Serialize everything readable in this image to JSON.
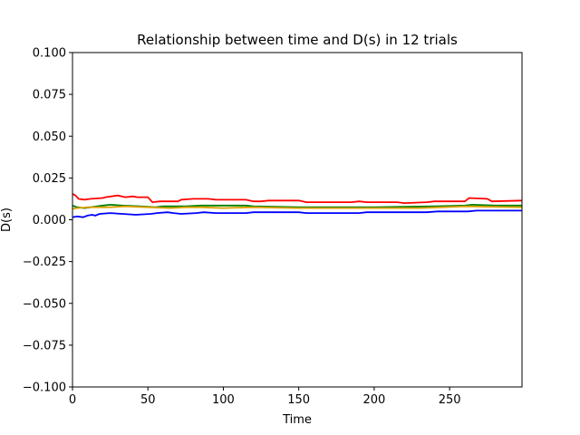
{
  "chart_data": {
    "type": "line",
    "title": "Relationship between time and D(s) in 12 trials",
    "xlabel": "Time",
    "ylabel": "D(s)",
    "xlim": [
      0,
      298
    ],
    "ylim": [
      -0.1,
      0.1
    ],
    "xticks": [
      0,
      50,
      100,
      150,
      200,
      250
    ],
    "xtick_labels": [
      "0",
      "50",
      "100",
      "150",
      "200",
      "250"
    ],
    "yticks": [
      0.1,
      0.075,
      0.05,
      0.025,
      0.0,
      -0.025,
      -0.05,
      -0.075,
      -0.1
    ],
    "ytick_labels": [
      "0.100",
      "0.075",
      "0.050",
      "0.025",
      "0.000",
      "−0.025",
      "−0.050",
      "−0.075",
      "−0.100"
    ],
    "grid": false,
    "series": [
      {
        "color": "#0000ff",
        "points": [
          [
            0,
            0.0015
          ],
          [
            3,
            0.002
          ],
          [
            7,
            0.0015
          ],
          [
            10,
            0.0025
          ],
          [
            13,
            0.003
          ],
          [
            15,
            0.0025
          ],
          [
            18,
            0.0035
          ],
          [
            25,
            0.004
          ],
          [
            33,
            0.0035
          ],
          [
            42,
            0.003
          ],
          [
            52,
            0.0035
          ],
          [
            56,
            0.004
          ],
          [
            63,
            0.0045
          ],
          [
            67,
            0.004
          ],
          [
            72,
            0.0035
          ],
          [
            82,
            0.004
          ],
          [
            87,
            0.0045
          ],
          [
            95,
            0.004
          ],
          [
            115,
            0.004
          ],
          [
            120,
            0.0045
          ],
          [
            150,
            0.0045
          ],
          [
            155,
            0.004
          ],
          [
            190,
            0.004
          ],
          [
            195,
            0.0045
          ],
          [
            235,
            0.0045
          ],
          [
            242,
            0.005
          ],
          [
            262,
            0.005
          ],
          [
            268,
            0.0055
          ],
          [
            298,
            0.0055
          ]
        ]
      },
      {
        "color": "#008000",
        "points": [
          [
            0,
            0.0085
          ],
          [
            3,
            0.0075
          ],
          [
            8,
            0.007
          ],
          [
            12,
            0.0075
          ],
          [
            20,
            0.0085
          ],
          [
            25,
            0.009
          ],
          [
            33,
            0.0085
          ],
          [
            45,
            0.008
          ],
          [
            55,
            0.0075
          ],
          [
            60,
            0.008
          ],
          [
            75,
            0.008
          ],
          [
            85,
            0.0085
          ],
          [
            95,
            0.0085
          ],
          [
            115,
            0.0085
          ],
          [
            120,
            0.008
          ],
          [
            150,
            0.0075
          ],
          [
            200,
            0.0075
          ],
          [
            240,
            0.008
          ],
          [
            260,
            0.0085
          ],
          [
            265,
            0.009
          ],
          [
            280,
            0.0085
          ],
          [
            298,
            0.0085
          ]
        ]
      },
      {
        "color": "#ff0000",
        "points": [
          [
            0,
            0.0155
          ],
          [
            2,
            0.0145
          ],
          [
            4,
            0.0125
          ],
          [
            8,
            0.012
          ],
          [
            12,
            0.0125
          ],
          [
            20,
            0.013
          ],
          [
            22,
            0.0135
          ],
          [
            30,
            0.0145
          ],
          [
            35,
            0.0135
          ],
          [
            40,
            0.014
          ],
          [
            43,
            0.0135
          ],
          [
            50,
            0.0135
          ],
          [
            53,
            0.0105
          ],
          [
            58,
            0.011
          ],
          [
            70,
            0.011
          ],
          [
            72,
            0.012
          ],
          [
            80,
            0.0125
          ],
          [
            90,
            0.0125
          ],
          [
            95,
            0.012
          ],
          [
            115,
            0.012
          ],
          [
            120,
            0.011
          ],
          [
            125,
            0.011
          ],
          [
            130,
            0.0115
          ],
          [
            150,
            0.0115
          ],
          [
            155,
            0.0105
          ],
          [
            185,
            0.0105
          ],
          [
            190,
            0.011
          ],
          [
            195,
            0.0105
          ],
          [
            215,
            0.0105
          ],
          [
            220,
            0.01
          ],
          [
            235,
            0.0105
          ],
          [
            240,
            0.011
          ],
          [
            260,
            0.011
          ],
          [
            263,
            0.013
          ],
          [
            275,
            0.0125
          ],
          [
            278,
            0.011
          ],
          [
            298,
            0.0115
          ]
        ]
      },
      {
        "color": "#dda000",
        "points": [
          [
            0,
            0.0065
          ],
          [
            3,
            0.007
          ],
          [
            10,
            0.0075
          ],
          [
            25,
            0.0075
          ],
          [
            35,
            0.008
          ],
          [
            50,
            0.0075
          ],
          [
            65,
            0.007
          ],
          [
            75,
            0.0075
          ],
          [
            85,
            0.0075
          ],
          [
            100,
            0.007
          ],
          [
            120,
            0.0075
          ],
          [
            150,
            0.007
          ],
          [
            200,
            0.007
          ],
          [
            230,
            0.007
          ],
          [
            245,
            0.0075
          ],
          [
            260,
            0.008
          ],
          [
            298,
            0.0075
          ]
        ]
      }
    ]
  }
}
